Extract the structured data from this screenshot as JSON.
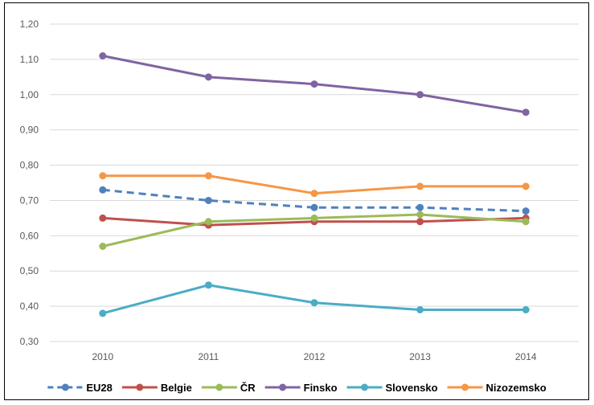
{
  "chart_data": {
    "type": "line",
    "title": "",
    "xlabel": "",
    "ylabel": "",
    "categories": [
      "2010",
      "2011",
      "2012",
      "2013",
      "2014"
    ],
    "ylim": [
      0.3,
      1.2
    ],
    "y_ticks": [
      "0,30",
      "0,40",
      "0,50",
      "0,60",
      "0,70",
      "0,80",
      "0,90",
      "1,00",
      "1,10",
      "1,20"
    ],
    "grid": true,
    "legend_position": "bottom",
    "series": [
      {
        "name": "EU28",
        "color": "#4F81BD",
        "dashed": true,
        "values": [
          0.73,
          0.7,
          0.68,
          0.68,
          0.67
        ]
      },
      {
        "name": "Belgie",
        "color": "#C0504D",
        "dashed": false,
        "values": [
          0.65,
          0.63,
          0.64,
          0.64,
          0.65
        ]
      },
      {
        "name": "ČR",
        "color": "#9BBB59",
        "dashed": false,
        "values": [
          0.57,
          0.64,
          0.65,
          0.66,
          0.64
        ]
      },
      {
        "name": "Finsko",
        "color": "#8064A2",
        "dashed": false,
        "values": [
          1.11,
          1.05,
          1.03,
          1.0,
          0.95
        ]
      },
      {
        "name": "Slovensko",
        "color": "#4BACC6",
        "dashed": false,
        "values": [
          0.38,
          0.46,
          0.41,
          0.39,
          0.39
        ]
      },
      {
        "name": "Nizozemsko",
        "color": "#F79646",
        "dashed": false,
        "values": [
          0.77,
          0.77,
          0.72,
          0.74,
          0.74
        ]
      }
    ]
  }
}
